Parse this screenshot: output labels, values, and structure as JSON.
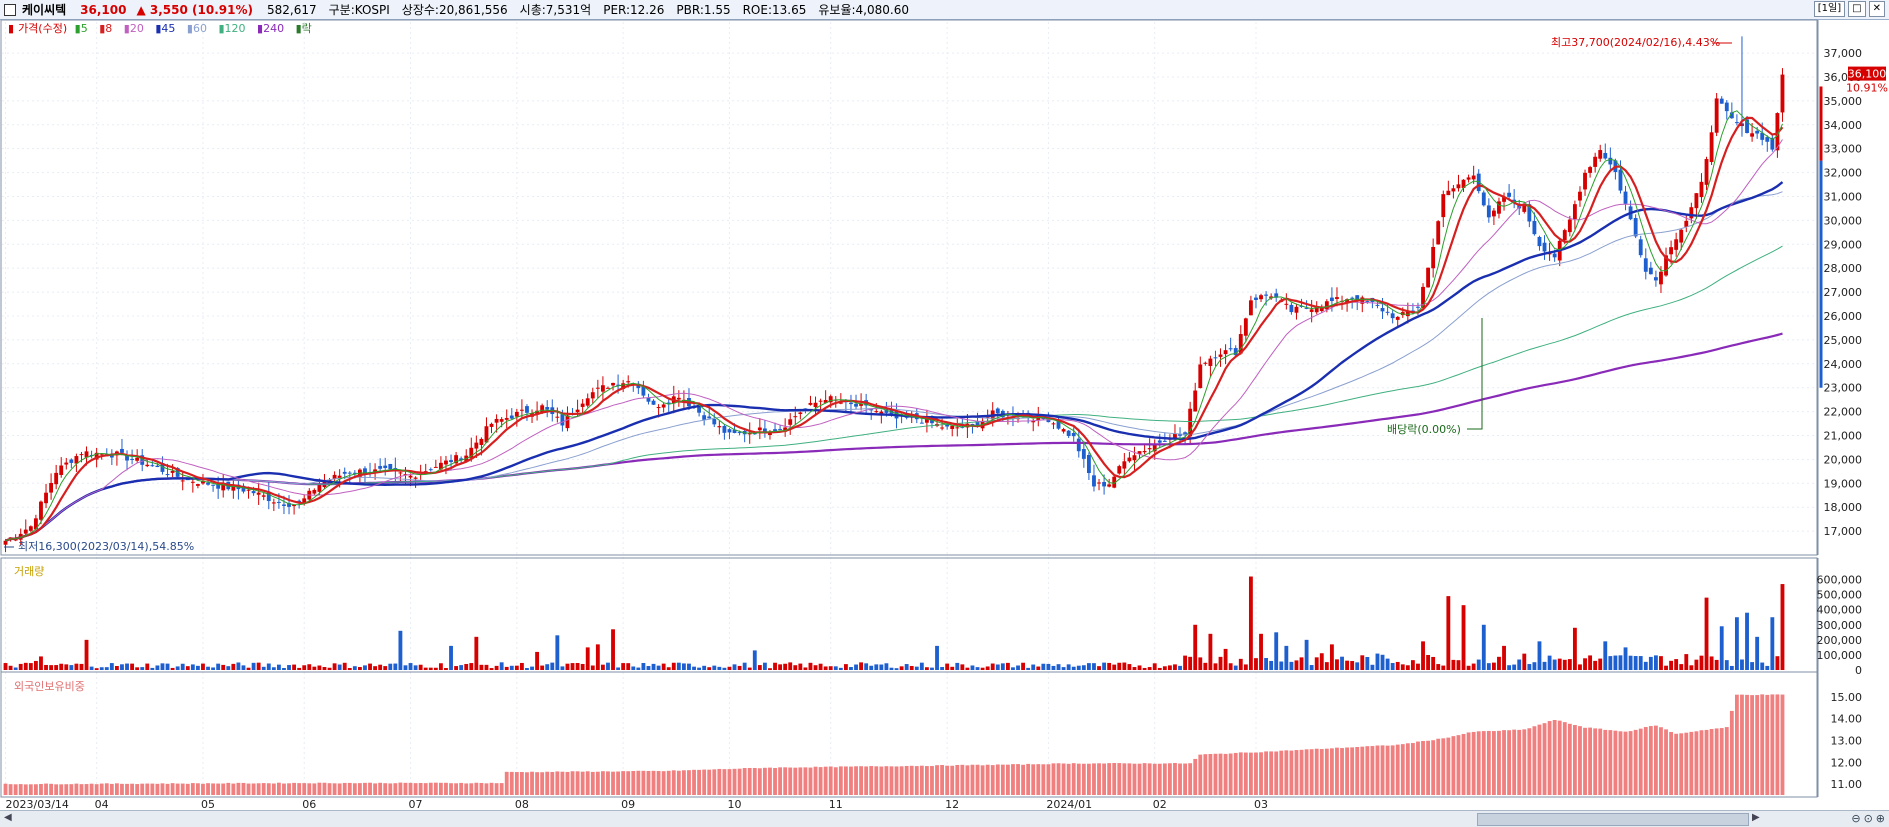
{
  "header": {
    "stock_name": "케이씨텍",
    "price": "36,100",
    "change": "▲ 3,550 (10.91%)",
    "volume": "582,617",
    "market": "구분:KOSPI",
    "shares": "상장수:20,861,556",
    "market_cap": "시총:7,531억",
    "per": "PER:12.26",
    "pbr": "PBR:1.55",
    "roe": "ROE:13.65",
    "reserve": "유보율:4,080.60",
    "period_label": "[1일]"
  },
  "legend": {
    "price_label": "가격(수정)",
    "ma5": "5",
    "ma8": "8",
    "ma20": "20",
    "ma45": "45",
    "ma60": "60",
    "ma120": "120",
    "ma240": "240",
    "ex_label": "락"
  },
  "annotations": {
    "high": "최고37,700(2024/02/16),4.43%",
    "low": "최저16,300(2023/03/14),54.85%",
    "dividend": "배당락(0.00%)",
    "current_price_tag": "36,100",
    "current_pct_tag": "10.91%"
  },
  "panels": {
    "volume_label": "거래량",
    "foreign_label": "외국인보유비중"
  },
  "colors": {
    "up": "#d60000",
    "down": "#1e5fd0",
    "ma5": "#2ca02c",
    "ma8": "#d62020",
    "ma20": "#c060c0",
    "ma45": "#1a2fb0",
    "ma60": "#8aa0d0",
    "ma120": "#40b080",
    "ma240": "#8a2ab8",
    "foreign_bar": "#f08080"
  },
  "chart_data": [
    {
      "type": "candlestick",
      "title": "",
      "x_labels": [
        "2023/03/14",
        "04",
        "05",
        "06",
        "07",
        "08",
        "09",
        "10",
        "11",
        "12",
        "2024/01",
        "02",
        "03"
      ],
      "y_ticks": [
        17000,
        18000,
        19000,
        20000,
        21000,
        22000,
        23000,
        24000,
        25000,
        26000,
        27000,
        28000,
        29000,
        30000,
        31000,
        32000,
        33000,
        34000,
        35000,
        36000,
        37000
      ],
      "ylim": [
        16000,
        38300
      ],
      "close_anchors": [
        [
          0,
          16600
        ],
        [
          5,
          17200
        ],
        [
          10,
          19500
        ],
        [
          15,
          20300
        ],
        [
          22,
          20200
        ],
        [
          28,
          19800
        ],
        [
          35,
          19200
        ],
        [
          42,
          18900
        ],
        [
          48,
          18700
        ],
        [
          54,
          18200
        ],
        [
          58,
          18100
        ],
        [
          62,
          19000
        ],
        [
          68,
          19500
        ],
        [
          75,
          19500
        ],
        [
          80,
          19300
        ],
        [
          86,
          19800
        ],
        [
          91,
          20200
        ],
        [
          96,
          21500
        ],
        [
          101,
          21900
        ],
        [
          106,
          22200
        ],
        [
          110,
          21500
        ],
        [
          115,
          22700
        ],
        [
          120,
          23200
        ],
        [
          124,
          23300
        ],
        [
          128,
          22200
        ],
        [
          133,
          22700
        ],
        [
          138,
          21800
        ],
        [
          143,
          21000
        ],
        [
          148,
          21200
        ],
        [
          153,
          21300
        ],
        [
          157,
          22000
        ],
        [
          162,
          22600
        ],
        [
          166,
          22300
        ],
        [
          171,
          22100
        ],
        [
          176,
          21700
        ],
        [
          180,
          21700
        ],
        [
          186,
          21300
        ],
        [
          191,
          21400
        ],
        [
          195,
          21900
        ],
        [
          201,
          21800
        ],
        [
          206,
          21700
        ],
        [
          211,
          20900
        ],
        [
          215,
          18900
        ],
        [
          218,
          19000
        ],
        [
          222,
          20200
        ],
        [
          226,
          20500
        ],
        [
          230,
          21000
        ],
        [
          233,
          21000
        ],
        [
          236,
          24000
        ],
        [
          240,
          24500
        ],
        [
          243,
          24500
        ],
        [
          246,
          26700
        ],
        [
          250,
          26900
        ],
        [
          254,
          26200
        ],
        [
          258,
          26400
        ],
        [
          262,
          26600
        ],
        [
          266,
          26800
        ],
        [
          270,
          26500
        ],
        [
          275,
          25900
        ],
        [
          279,
          26400
        ],
        [
          281,
          28000
        ],
        [
          284,
          31000
        ],
        [
          287,
          31500
        ],
        [
          290,
          32000
        ],
        [
          293,
          30000
        ],
        [
          296,
          31000
        ],
        [
          300,
          30500
        ],
        [
          303,
          29000
        ],
        [
          306,
          28500
        ],
        [
          309,
          30000
        ],
        [
          312,
          32000
        ],
        [
          315,
          33000
        ],
        [
          318,
          32000
        ],
        [
          321,
          30000
        ],
        [
          324,
          28000
        ],
        [
          326,
          27500
        ],
        [
          329,
          29000
        ],
        [
          332,
          30000
        ],
        [
          335,
          31500
        ],
        [
          338,
          35000
        ],
        [
          341,
          34200
        ],
        [
          344,
          33800
        ],
        [
          347,
          33500
        ],
        [
          349,
          33000
        ],
        [
          351,
          36100
        ]
      ],
      "high": {
        "value": 37700,
        "date": "2024/02/16"
      },
      "low": {
        "value": 16300,
        "date": "2023/03/14"
      },
      "last_close": 36100,
      "moving_averages": [
        "5",
        "8",
        "20",
        "45",
        "60",
        "120",
        "240"
      ]
    },
    {
      "type": "bar",
      "title": "",
      "series_label": "거래량",
      "y_ticks": [
        0,
        100000,
        200000,
        300000,
        400000,
        500000,
        600000
      ],
      "ylim": [
        0,
        650000
      ],
      "baseline": 30000,
      "spikes": [
        [
          6,
          60000
        ],
        [
          7,
          90000
        ],
        [
          16,
          200000
        ],
        [
          78,
          260000
        ],
        [
          88,
          160000
        ],
        [
          93,
          220000
        ],
        [
          105,
          120000
        ],
        [
          109,
          230000
        ],
        [
          115,
          150000
        ],
        [
          117,
          170000
        ],
        [
          120,
          270000
        ],
        [
          148,
          130000
        ],
        [
          184,
          160000
        ],
        [
          235,
          300000
        ],
        [
          238,
          240000
        ],
        [
          241,
          140000
        ],
        [
          246,
          620000
        ],
        [
          248,
          240000
        ],
        [
          251,
          250000
        ],
        [
          253,
          160000
        ],
        [
          257,
          200000
        ],
        [
          262,
          170000
        ],
        [
          280,
          190000
        ],
        [
          285,
          490000
        ],
        [
          288,
          430000
        ],
        [
          292,
          300000
        ],
        [
          296,
          160000
        ],
        [
          303,
          190000
        ],
        [
          310,
          280000
        ],
        [
          316,
          190000
        ],
        [
          320,
          150000
        ],
        [
          336,
          480000
        ],
        [
          339,
          290000
        ],
        [
          342,
          350000
        ],
        [
          344,
          380000
        ],
        [
          346,
          220000
        ],
        [
          349,
          350000
        ],
        [
          351,
          570000
        ]
      ]
    },
    {
      "type": "bar",
      "title": "",
      "series_label": "외국인보유비중",
      "y_ticks": [
        11.0,
        12.0,
        13.0,
        14.0,
        15.0
      ],
      "ylim": [
        10.5,
        15.5
      ],
      "anchors": [
        [
          0,
          11.0
        ],
        [
          60,
          11.05
        ],
        [
          98,
          11.05
        ],
        [
          99,
          11.55
        ],
        [
          130,
          11.6
        ],
        [
          150,
          11.75
        ],
        [
          200,
          11.9
        ],
        [
          210,
          11.95
        ],
        [
          234,
          11.95
        ],
        [
          236,
          12.35
        ],
        [
          250,
          12.5
        ],
        [
          275,
          12.8
        ],
        [
          284,
          13.1
        ],
        [
          290,
          13.4
        ],
        [
          300,
          13.5
        ],
        [
          306,
          13.95
        ],
        [
          312,
          13.6
        ],
        [
          320,
          13.4
        ],
        [
          326,
          13.7
        ],
        [
          330,
          13.3
        ],
        [
          336,
          13.5
        ],
        [
          340,
          13.6
        ],
        [
          342,
          15.1
        ],
        [
          351,
          15.1
        ]
      ]
    }
  ]
}
